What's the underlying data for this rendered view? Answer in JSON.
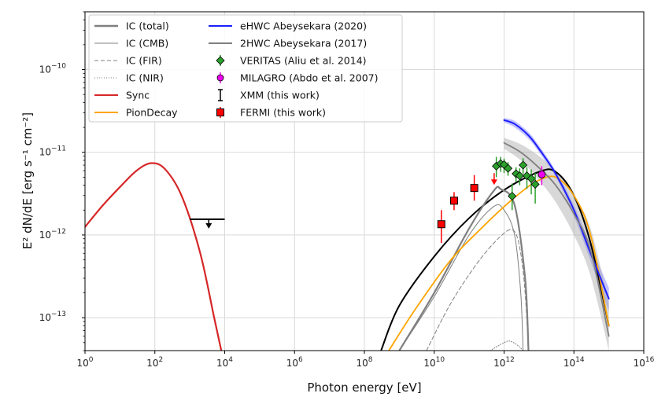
{
  "chart_data": {
    "type": "line",
    "xlabel": "Photon energy [eV]",
    "ylabel": "E² dN/dE [erg s⁻¹ cm⁻²]",
    "xscale": "log",
    "yscale": "log",
    "xlim": [
      1,
      1e+16
    ],
    "ylim": [
      4e-14,
      5e-10
    ],
    "grid": true,
    "legend_position": "top-left",
    "x_ticks": [
      {
        "value": 1,
        "label": "10",
        "exp": "0"
      },
      {
        "value": 100,
        "label": "10",
        "exp": "2"
      },
      {
        "value": 10000,
        "label": "10",
        "exp": "4"
      },
      {
        "value": 1000000,
        "label": "10",
        "exp": "6"
      },
      {
        "value": 100000000,
        "label": "10",
        "exp": "8"
      },
      {
        "value": 10000000000,
        "label": "10",
        "exp": "10"
      },
      {
        "value": 1000000000000,
        "label": "10",
        "exp": "12"
      },
      {
        "value": 100000000000000,
        "label": "10",
        "exp": "14"
      },
      {
        "value": 10000000000000000,
        "label": "10",
        "exp": "16"
      }
    ],
    "y_ticks": [
      {
        "value": 1e-13,
        "label": "10",
        "exp": "−13"
      },
      {
        "value": 1e-12,
        "label": "10",
        "exp": "−12"
      },
      {
        "value": 1e-11,
        "label": "10",
        "exp": "−11"
      },
      {
        "value": 1e-10,
        "label": "10",
        "exp": "−10"
      }
    ],
    "legend_left": [
      {
        "label": "IC (total)",
        "color": "#808080",
        "style": "solid-thick"
      },
      {
        "label": "IC (CMB)",
        "color": "#808080",
        "style": "solid-thin"
      },
      {
        "label": "IC (FIR)",
        "color": "#808080",
        "style": "dashed"
      },
      {
        "label": "IC (NIR)",
        "color": "#808080",
        "style": "dotted"
      },
      {
        "label": "Sync",
        "color": "#d62728",
        "style": "solid"
      },
      {
        "label": "PionDecay",
        "color": "#ffa500",
        "style": "solid"
      }
    ],
    "legend_right": [
      {
        "label": "eHWC Abeysekara (2020)",
        "color": "#1f1fff",
        "style": "solid"
      },
      {
        "label": "2HWC Abeysekara (2017)",
        "color": "#808080",
        "style": "solid"
      },
      {
        "label": "VERITAS (Aliu et al. 2014)",
        "color": "#2ca02c",
        "style": "diamond"
      },
      {
        "label": "MILAGRO (Abdo et al. 2007)",
        "color": "#ee00ee",
        "style": "circle"
      },
      {
        "label": "XMM (this work)",
        "color": "#000000",
        "style": "errorbar"
      },
      {
        "label": "FERMI (this work)",
        "color": "#ff0000",
        "style": "square"
      }
    ],
    "series": [
      {
        "name": "Total model",
        "color": "#000000",
        "width": 2,
        "points": [
          [
            300000000.0,
            4e-14
          ],
          [
            1000000000.0,
            1.4e-13
          ],
          [
            10000000000.0,
            5.5e-13
          ],
          [
            100000000000.0,
            1.6e-12
          ],
          [
            1000000000000.0,
            3.5e-12
          ],
          [
            10000000000000.0,
            5.8e-12
          ],
          [
            30000000000000.0,
            5.8e-12
          ],
          [
            100000000000000.0,
            3e-12
          ],
          [
            300000000000000.0,
            8e-13
          ],
          [
            1000000000000000.0,
            8e-14
          ]
        ]
      },
      {
        "name": "IC (total)",
        "color": "#808080",
        "width": 2.2,
        "points": [
          [
            1000000000.0,
            4e-14
          ],
          [
            10000000000.0,
            2e-13
          ],
          [
            100000000000.0,
            1.2e-12
          ],
          [
            500000000000.0,
            3.4e-12
          ],
          [
            800000000000.0,
            3.6e-12
          ],
          [
            2000000000000.0,
            2.3e-12
          ],
          [
            4000000000000.0,
            3e-13
          ],
          [
            5000000000000.0,
            4e-14
          ]
        ]
      },
      {
        "name": "IC (CMB)",
        "color": "#808080",
        "width": 1,
        "points": [
          [
            1000000000.0,
            4e-14
          ],
          [
            10000000000.0,
            1.8e-13
          ],
          [
            100000000000.0,
            1e-12
          ],
          [
            500000000000.0,
            2.2e-12
          ],
          [
            1000000000000.0,
            2e-12
          ],
          [
            2000000000000.0,
            1e-12
          ],
          [
            3000000000000.0,
            2e-13
          ],
          [
            3500000000000.0,
            4e-14
          ]
        ]
      },
      {
        "name": "IC (FIR)",
        "color": "#808080",
        "width": 1,
        "dash": "5,3",
        "points": [
          [
            6000000000.0,
            4e-14
          ],
          [
            30000000000.0,
            1.5e-13
          ],
          [
            200000000000.0,
            5e-13
          ],
          [
            1000000000000.0,
            1.05e-12
          ],
          [
            2000000000000.0,
            1.1e-12
          ],
          [
            3000000000000.0,
            6e-13
          ],
          [
            4000000000000.0,
            2e-13
          ],
          [
            5000000000000.0,
            4e-14
          ]
        ]
      },
      {
        "name": "IC (NIR)",
        "color": "#808080",
        "width": 1,
        "dash": "1,2",
        "points": [
          [
            400000000000.0,
            4e-14
          ],
          [
            1000000000000.0,
            5e-14
          ],
          [
            1500000000000.0,
            5.2e-14
          ],
          [
            2500000000000.0,
            4.6e-14
          ],
          [
            3500000000000.0,
            4e-14
          ]
        ]
      },
      {
        "name": "Sync",
        "color": "#d62728",
        "width": 2.2,
        "points": [
          [
            1,
            1.25e-12
          ],
          [
            3,
            2.2e-12
          ],
          [
            10,
            3.8e-12
          ],
          [
            30,
            6e-12
          ],
          [
            80,
            7.4e-12
          ],
          [
            200,
            6.2e-12
          ],
          [
            600,
            2.9e-12
          ],
          [
            2000,
            6e-13
          ],
          [
            5000,
            1e-13
          ],
          [
            8000,
            4e-14
          ]
        ]
      },
      {
        "name": "PionDecay",
        "color": "#ffa500",
        "width": 1.8,
        "points": [
          [
            500000000.0,
            4e-14
          ],
          [
            3000000000.0,
            1.3e-13
          ],
          [
            30000000000.0,
            5e-13
          ],
          [
            200000000000.0,
            1.15e-12
          ],
          [
            1000000000000.0,
            2.2e-12
          ],
          [
            4000000000000.0,
            3.6e-12
          ],
          [
            10000000000000.0,
            4.6e-12
          ],
          [
            30000000000000.0,
            5e-12
          ],
          [
            100000000000000.0,
            3e-12
          ],
          [
            300000000000000.0,
            1e-12
          ],
          [
            1000000000000000.0,
            8e-14
          ]
        ]
      },
      {
        "name": "eHWC Abeysekara (2020)",
        "color": "#1f1fff",
        "width": 2,
        "points": [
          [
            1000000000000.0,
            2.45e-11
          ],
          [
            2000000000000.0,
            2.2e-11
          ],
          [
            5000000000000.0,
            1.6e-11
          ],
          [
            10000000000000.0,
            1.1e-11
          ],
          [
            30000000000000.0,
            5.5e-12
          ],
          [
            100000000000000.0,
            2e-12
          ],
          [
            300000000000000.0,
            6e-13
          ],
          [
            1000000000000000.0,
            1.7e-13
          ]
        ]
      },
      {
        "name": "2HWC Abeysekara (2017)",
        "color": "#808080",
        "width": 1.8,
        "points": [
          [
            1000000000000.0,
            1.3e-11
          ],
          [
            3000000000000.0,
            1e-11
          ],
          [
            10000000000000.0,
            6.5e-12
          ],
          [
            30000000000000.0,
            4e-12
          ],
          [
            100000000000000.0,
            1.8e-12
          ],
          [
            300000000000000.0,
            6.5e-13
          ],
          [
            1000000000000000.0,
            6e-14
          ]
        ]
      }
    ],
    "bands": [
      {
        "name": "eHWC band",
        "color": "#6a6aff",
        "opacity": 0.4,
        "upper": [
          [
            1000000000000.0,
            2.6e-11
          ],
          [
            2000000000000.0,
            2.4e-11
          ],
          [
            5000000000000.0,
            1.75e-11
          ],
          [
            10000000000000.0,
            1.2e-11
          ],
          [
            30000000000000.0,
            6e-12
          ],
          [
            100000000000000.0,
            2.3e-12
          ],
          [
            300000000000000.0,
            7.5e-13
          ],
          [
            1000000000000000.0,
            2.3e-13
          ]
        ],
        "lower": [
          [
            1000000000000.0,
            2.3e-11
          ],
          [
            2000000000000.0,
            2e-11
          ],
          [
            5000000000000.0,
            1.45e-11
          ],
          [
            10000000000000.0,
            1e-11
          ],
          [
            30000000000000.0,
            5e-12
          ],
          [
            100000000000000.0,
            1.7e-12
          ],
          [
            300000000000000.0,
            4.8e-13
          ],
          [
            1000000000000000.0,
            1.2e-13
          ]
        ]
      },
      {
        "name": "2HWC band",
        "color": "#a9a9a9",
        "opacity": 0.45,
        "upper": [
          [
            1000000000000.0,
            1.5e-11
          ],
          [
            3000000000000.0,
            1.25e-11
          ],
          [
            10000000000000.0,
            9e-12
          ],
          [
            30000000000000.0,
            6e-12
          ],
          [
            100000000000000.0,
            3e-12
          ],
          [
            300000000000000.0,
            1.2e-12
          ],
          [
            1000000000000000.0,
            1.5e-13
          ]
        ],
        "lower": [
          [
            1000000000000.0,
            1.1e-11
          ],
          [
            3000000000000.0,
            8e-12
          ],
          [
            10000000000000.0,
            4.6e-12
          ],
          [
            30000000000000.0,
            2.5e-12
          ],
          [
            100000000000000.0,
            1e-12
          ],
          [
            300000000000000.0,
            3.2e-13
          ],
          [
            1000000000000000.0,
            4e-14
          ]
        ]
      }
    ],
    "fermi_points": [
      {
        "x": 16000000000.0,
        "y": 1.35e-12,
        "ylo": 8e-13,
        "yhi": 2e-12
      },
      {
        "x": 37000000000.0,
        "y": 2.6e-12,
        "ylo": 2e-12,
        "yhi": 3.3e-12
      },
      {
        "x": 140000000000.0,
        "y": 3.7e-12,
        "ylo": 2.6e-12,
        "yhi": 5.3e-12
      },
      {
        "x": 520000000000.0,
        "y": 5.6e-12,
        "upper_limit": true
      }
    ],
    "veritas_points": [
      {
        "x": 600000000000.0,
        "y": 6.8e-12,
        "ylo": 5e-12,
        "yhi": 8.8e-12
      },
      {
        "x": 800000000000.0,
        "y": 7.3e-12,
        "ylo": 5.8e-12,
        "yhi": 8.8e-12
      },
      {
        "x": 1000000000000.0,
        "y": 7.1e-12,
        "ylo": 5.6e-12,
        "yhi": 8.4e-12
      },
      {
        "x": 1300000000000.0,
        "y": 6.4e-12,
        "ylo": 5.2e-12,
        "yhi": 7.6e-12
      },
      {
        "x": 1700000000000.0,
        "y": 2.95e-12,
        "ylo": 2e-12,
        "yhi": 4.2e-12
      },
      {
        "x": 2200000000000.0,
        "y": 5.5e-12,
        "ylo": 4.4e-12,
        "yhi": 6.6e-12
      },
      {
        "x": 2800000000000.0,
        "y": 5.2e-12,
        "ylo": 4e-12,
        "yhi": 6.4e-12
      },
      {
        "x": 3500000000000.0,
        "y": 7e-12,
        "ylo": 5.5e-12,
        "yhi": 8.5e-12
      },
      {
        "x": 4500000000000.0,
        "y": 5.2e-12,
        "ylo": 3.6e-12,
        "yhi": 6.6e-12
      },
      {
        "x": 6000000000000.0,
        "y": 4.8e-12,
        "ylo": 3.1e-12,
        "yhi": 6.2e-12
      },
      {
        "x": 7800000000000.0,
        "y": 4.1e-12,
        "ylo": 2.4e-12,
        "yhi": 5.6e-12
      }
    ],
    "milagro_points": [
      {
        "x": 12000000000000.0,
        "y": 5.4e-12,
        "ylo": 4e-12,
        "yhi": 6.8e-12
      }
    ],
    "xmm_upper_limit": {
      "x_min": 1000,
      "x_max": 10000,
      "x_arrow": 3500,
      "y": 1.55e-12
    }
  }
}
